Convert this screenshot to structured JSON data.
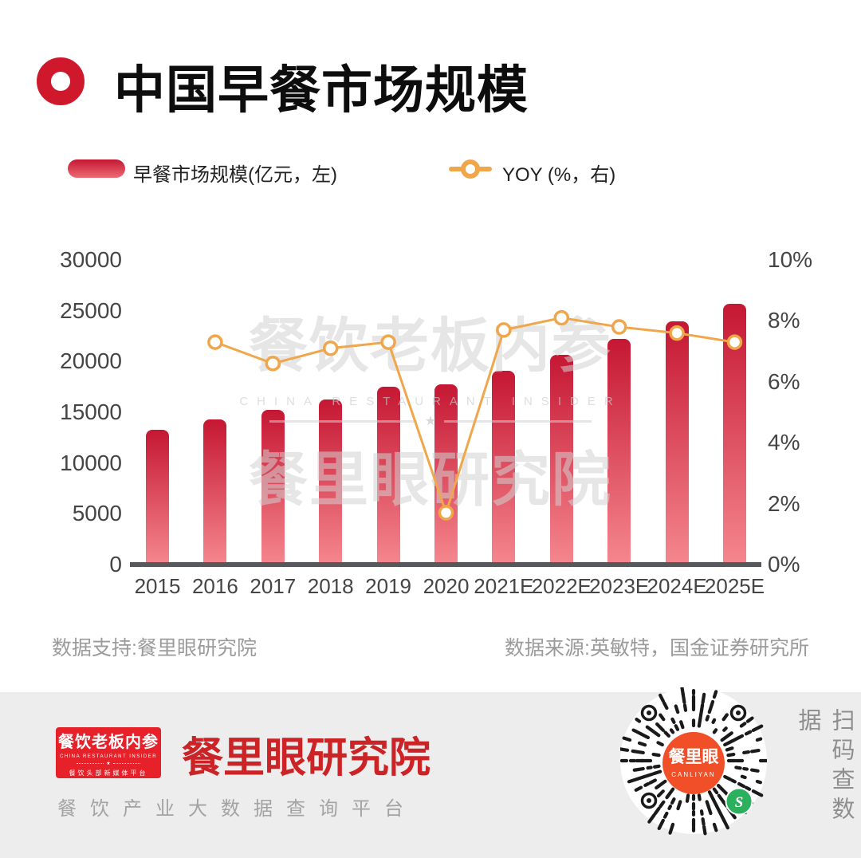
{
  "title": "中国早餐市场规模",
  "legend": {
    "bar_label": "早餐市场规模(亿元，左)",
    "line_label": "YOY (%，右)"
  },
  "watermark": {
    "line1": "餐饮老板内参",
    "line2": "CHINA RESTAURANT INSIDER",
    "line3": "餐里眼研究院",
    "star": "★"
  },
  "chart_data": {
    "type": "bar",
    "title": "中国早餐市场规模",
    "categories": [
      "2015",
      "2016",
      "2017",
      "2018",
      "2019",
      "2020",
      "2021E",
      "2022E",
      "2023E",
      "2024E",
      "2025E"
    ],
    "series": [
      {
        "name": "早餐市场规模(亿元，左)",
        "type": "bar",
        "axis": "left",
        "values": [
          13300,
          14270,
          15210,
          16290,
          17480,
          17770,
          19100,
          20640,
          22250,
          23940,
          25690
        ]
      },
      {
        "name": "YOY (%，右)",
        "type": "line",
        "axis": "right",
        "values": [
          null,
          7.3,
          6.6,
          7.1,
          7.3,
          1.7,
          7.7,
          8.1,
          7.8,
          7.6,
          7.3
        ]
      }
    ],
    "left_axis": {
      "ticks": [
        0,
        5000,
        10000,
        15000,
        20000,
        25000,
        30000
      ],
      "min": 0,
      "max": 30000
    },
    "right_axis": {
      "ticks": [
        "0%",
        "2%",
        "4%",
        "6%",
        "8%",
        "10%"
      ],
      "tick_values": [
        0,
        2,
        4,
        6,
        8,
        10
      ],
      "min": 0,
      "max": 10
    },
    "grid": false,
    "legend_position": "top"
  },
  "sources": {
    "left": "数据支持:餐里眼研究院",
    "right": "数据来源:英敏特，国金证券研究所"
  },
  "footer": {
    "logo_box": {
      "line1": "餐饮老板内参",
      "line2": "CHINA RESTAURANT INSIDER",
      "line3": "餐饮头部新媒体平台",
      "star": "★"
    },
    "brand": "餐里眼研究院",
    "tagline": "餐饮产业大数据查询平台",
    "qr": {
      "center_text": "餐里眼",
      "center_sub": "CANLIYAN",
      "wechat_glyph": "S"
    },
    "scan_text": "扫码查数据"
  },
  "colors": {
    "accent_red": "#d0182d",
    "bar_top": "#c51733",
    "bar_bottom": "#f5878e",
    "line_orange": "#f0a64b",
    "axis_line": "#57585b",
    "axis_text": "#454545",
    "source_text": "#9b9b9b",
    "footer_bg": "#ededed",
    "logo_red": "#e62129",
    "brand_red": "#cc2327",
    "qr_center_orange": "#f04f28",
    "wechat_green": "#2bb05e"
  }
}
